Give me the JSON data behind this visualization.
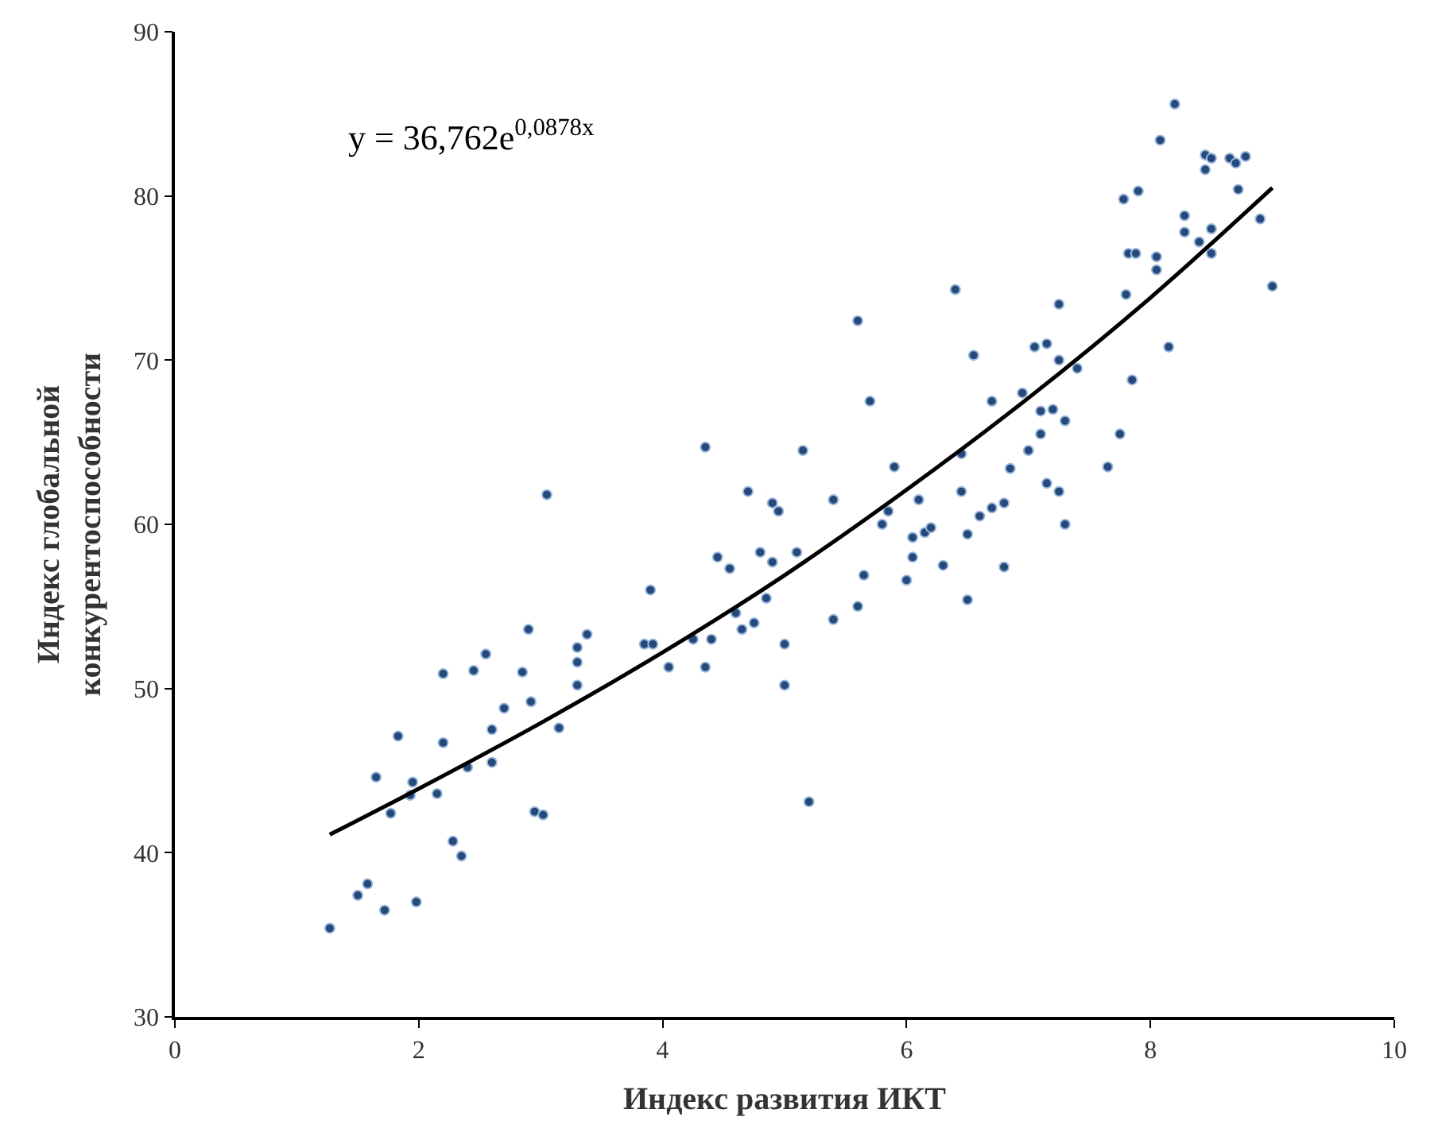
{
  "chart_data": {
    "type": "scatter",
    "xlabel": "Индекс развития ИКТ",
    "ylabel": "Индекс глобальной\nконкурентоспособности",
    "annotations": [
      "y = 36,762e$^{0,0878x}$"
    ],
    "xlim": [
      0,
      10
    ],
    "xticks": [
      0,
      2,
      4,
      6,
      8,
      10
    ],
    "ylim": [
      30,
      90
    ],
    "yticks": [
      30,
      40,
      50,
      60,
      70,
      80,
      90
    ],
    "legend": false,
    "marker": "circle",
    "series": [
      {
        "color": "#244a7c",
        "x": [
          1.27,
          1.5,
          1.58,
          1.65,
          1.72,
          1.77,
          1.83,
          1.95,
          1.98,
          1.93,
          2.15,
          2.2,
          2.2,
          2.28,
          2.35,
          2.4,
          2.45,
          2.55,
          2.6,
          2.6,
          2.7,
          2.85,
          2.9,
          2.92,
          2.95,
          3.02,
          3.05,
          3.15,
          3.3,
          3.3,
          3.3,
          3.38,
          3.85,
          3.9,
          3.92,
          4.05,
          4.25,
          4.35,
          4.35,
          4.4,
          4.45,
          4.55,
          4.6,
          4.65,
          4.7,
          4.75,
          4.8,
          4.85,
          4.9,
          4.9,
          4.95,
          5.0,
          5.0,
          5.1,
          5.15,
          5.2,
          5.4,
          5.4,
          5.6,
          5.6,
          5.65,
          5.7,
          5.8,
          5.85,
          5.9,
          6.0,
          6.05,
          6.05,
          6.1,
          6.15,
          6.2,
          6.3,
          6.4,
          6.45,
          6.45,
          6.5,
          6.5,
          6.55,
          6.6,
          6.7,
          6.7,
          6.8,
          6.8,
          6.85,
          6.95,
          7.0,
          7.05,
          7.1,
          7.1,
          7.15,
          7.15,
          7.2,
          7.25,
          7.25,
          7.25,
          7.3,
          7.3,
          7.4,
          7.65,
          7.75,
          7.8,
          7.78,
          7.82,
          7.88,
          7.85,
          7.9,
          8.05,
          8.05,
          8.08,
          8.15,
          8.2,
          8.28,
          8.28,
          8.4,
          8.45,
          8.45,
          8.5,
          8.5,
          8.5,
          8.65,
          8.7,
          8.72,
          8.78,
          8.9,
          9.0
        ],
        "values": [
          35.4,
          37.4,
          38.1,
          44.6,
          36.5,
          42.4,
          47.1,
          44.3,
          37.0,
          43.5,
          43.6,
          50.9,
          46.7,
          40.7,
          39.8,
          45.2,
          51.1,
          52.1,
          47.5,
          45.5,
          48.8,
          51.0,
          53.6,
          49.2,
          42.5,
          42.3,
          61.8,
          47.6,
          50.2,
          51.6,
          52.5,
          53.3,
          52.7,
          56.0,
          52.7,
          51.3,
          53.0,
          51.3,
          64.7,
          53.0,
          58.0,
          57.3,
          54.6,
          53.6,
          62.0,
          54.0,
          58.3,
          55.5,
          57.7,
          61.3,
          60.8,
          52.7,
          50.2,
          58.3,
          64.5,
          43.1,
          61.5,
          54.2,
          72.4,
          55.0,
          56.9,
          67.5,
          60.0,
          60.8,
          63.5,
          56.6,
          59.2,
          58.0,
          61.5,
          59.5,
          59.8,
          57.5,
          74.3,
          64.3,
          62.0,
          55.4,
          59.4,
          70.3,
          60.5,
          67.5,
          61.0,
          61.3,
          57.4,
          63.4,
          68.0,
          64.5,
          70.8,
          66.9,
          65.5,
          62.5,
          71.0,
          67.0,
          70.0,
          73.4,
          62.0,
          60.0,
          66.3,
          69.5,
          63.5,
          65.5,
          74.0,
          79.8,
          76.5,
          76.5,
          68.8,
          80.3,
          75.5,
          76.3,
          83.4,
          70.8,
          85.6,
          78.8,
          77.8,
          77.2,
          82.5,
          81.6,
          76.5,
          82.3,
          78.0,
          82.3,
          82.0,
          80.4,
          82.4,
          78.6,
          74.5
        ]
      },
      {
        "type": "line",
        "color": "#000000",
        "marker": "none",
        "line_style": "solid",
        "x": [
          1.27,
          2,
          3,
          4,
          5,
          6,
          7,
          8,
          9
        ],
        "values": [
          41.1,
          43.9,
          47.9,
          52.2,
          56.9,
          62.1,
          67.7,
          73.8,
          80.5
        ]
      }
    ]
  }
}
